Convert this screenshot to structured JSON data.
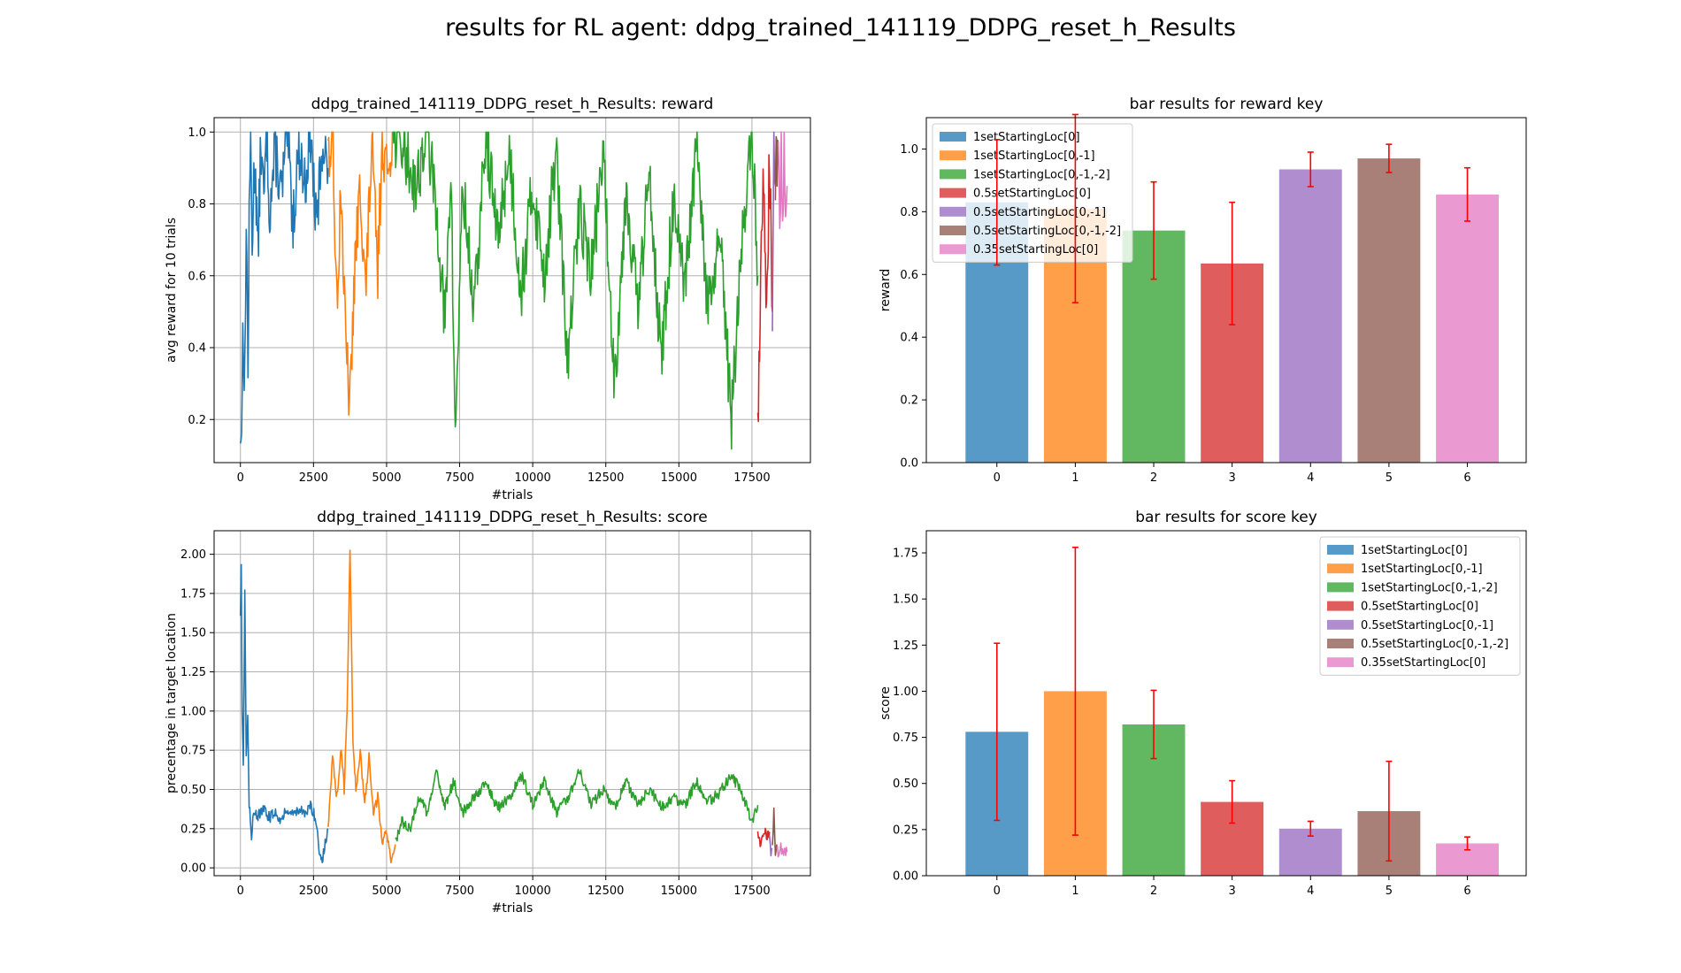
{
  "figure_title": "results for RL agent: ddpg_trained_141119_DDPG_reset_h_Results",
  "colors": {
    "series": [
      "#1f77b4",
      "#ff7f0e",
      "#2ca02c",
      "#d62728",
      "#9467bd",
      "#8c564b",
      "#e377c2"
    ],
    "error_bar": "#ff0000",
    "grid": "#b0b0b0"
  },
  "chart_data": [
    {
      "type": "line",
      "title": "ddpg_trained_141119_DDPG_reset_h_Results: reward",
      "xlabel": "#trials",
      "ylabel": "avg reward for 10 trials",
      "xlim": [
        -900,
        19500
      ],
      "ylim": [
        0.08,
        1.04
      ],
      "xticks": [
        0,
        2500,
        5000,
        7500,
        10000,
        12500,
        15000,
        17500
      ],
      "xtick_labels": [
        "0",
        "2500",
        "5000",
        "7500",
        "10000",
        "12500",
        "15000",
        "17500"
      ],
      "yticks": [
        0.2,
        0.4,
        0.6,
        0.8,
        1.0
      ],
      "ytick_labels": [
        "0.2",
        "0.4",
        "0.6",
        "0.8",
        "1.0"
      ],
      "grid": true,
      "series": [
        {
          "range": [
            0,
            3000
          ],
          "points": [
            [
              0,
              0.18
            ],
            [
              40,
              0.12
            ],
            [
              80,
              0.55
            ],
            [
              130,
              0.2
            ],
            [
              200,
              0.76
            ],
            [
              260,
              0.35
            ],
            [
              300,
              0.72
            ],
            [
              350,
              1.0
            ],
            [
              400,
              0.7
            ],
            [
              500,
              0.95
            ],
            [
              600,
              0.65
            ],
            [
              700,
              0.98
            ],
            [
              800,
              0.8
            ],
            [
              900,
              1.0
            ],
            [
              1000,
              0.78
            ],
            [
              1200,
              0.95
            ],
            [
              1400,
              0.82
            ],
            [
              1600,
              1.0
            ],
            [
              1800,
              0.75
            ],
            [
              2000,
              0.97
            ],
            [
              2200,
              0.85
            ],
            [
              2400,
              1.0
            ],
            [
              2600,
              0.72
            ],
            [
              2800,
              0.98
            ],
            [
              3000,
              0.9
            ]
          ]
        },
        {
          "range": [
            3000,
            5200
          ],
          "points": [
            [
              3000,
              0.9
            ],
            [
              3150,
              1.0
            ],
            [
              3300,
              0.55
            ],
            [
              3450,
              0.85
            ],
            [
              3600,
              0.4
            ],
            [
              3750,
              0.24
            ],
            [
              3900,
              0.6
            ],
            [
              4100,
              0.85
            ],
            [
              4300,
              0.55
            ],
            [
              4400,
              0.8
            ],
            [
              4500,
              0.95
            ],
            [
              4700,
              0.6
            ],
            [
              4850,
              1.0
            ],
            [
              5000,
              0.88
            ],
            [
              5200,
              1.0
            ]
          ]
        },
        {
          "range": [
            5200,
            17700
          ],
          "points": [
            [
              5200,
              1.0
            ],
            [
              5600,
              0.95
            ],
            [
              6000,
              0.85
            ],
            [
              6400,
              1.0
            ],
            [
              6800,
              0.7
            ],
            [
              7000,
              0.45
            ],
            [
              7200,
              0.9
            ],
            [
              7350,
              0.15
            ],
            [
              7600,
              0.85
            ],
            [
              8000,
              0.5
            ],
            [
              8400,
              1.0
            ],
            [
              8800,
              0.7
            ],
            [
              9200,
              0.95
            ],
            [
              9600,
              0.55
            ],
            [
              10000,
              0.85
            ],
            [
              10400,
              0.6
            ],
            [
              10800,
              0.95
            ],
            [
              11200,
              0.35
            ],
            [
              11600,
              0.8
            ],
            [
              12000,
              0.6
            ],
            [
              12400,
              0.95
            ],
            [
              12800,
              0.3
            ],
            [
              13200,
              0.85
            ],
            [
              13600,
              0.5
            ],
            [
              14000,
              0.9
            ],
            [
              14400,
              0.35
            ],
            [
              14800,
              0.8
            ],
            [
              15200,
              0.55
            ],
            [
              15600,
              0.95
            ],
            [
              16000,
              0.5
            ],
            [
              16400,
              0.7
            ],
            [
              16800,
              0.2
            ],
            [
              17200,
              0.75
            ],
            [
              17500,
              1.0
            ],
            [
              17700,
              0.6
            ]
          ]
        },
        {
          "range": [
            17700,
            18200
          ],
          "points": [
            [
              17700,
              0.2
            ],
            [
              17800,
              0.6
            ],
            [
              17900,
              0.9
            ],
            [
              18000,
              0.45
            ],
            [
              18100,
              0.95
            ],
            [
              18200,
              0.5
            ]
          ]
        },
        {
          "range": [
            18200,
            18300
          ],
          "points": [
            [
              18200,
              0.5
            ],
            [
              18250,
              1.0
            ],
            [
              18300,
              0.85
            ]
          ]
        },
        {
          "range": [
            18300,
            18400
          ],
          "points": [
            [
              18300,
              0.85
            ],
            [
              18330,
              0.95
            ],
            [
              18360,
              0.9
            ],
            [
              18400,
              0.96
            ]
          ]
        },
        {
          "range": [
            18400,
            18700
          ],
          "points": [
            [
              18400,
              0.96
            ],
            [
              18450,
              0.72
            ],
            [
              18500,
              0.93
            ],
            [
              18550,
              0.8
            ],
            [
              18600,
              0.92
            ],
            [
              18650,
              0.7
            ],
            [
              18700,
              0.85
            ]
          ]
        }
      ]
    },
    {
      "type": "bar",
      "title": "bar results for reward key",
      "xlabel": "",
      "ylabel": "reward",
      "categories": [
        "0",
        "1",
        "2",
        "3",
        "4",
        "5",
        "6"
      ],
      "values": [
        0.83,
        0.81,
        0.74,
        0.635,
        0.935,
        0.97,
        0.855
      ],
      "errors": [
        0.2,
        0.3,
        0.155,
        0.195,
        0.055,
        0.045,
        0.085
      ],
      "legend": [
        "1setStartingLoc[0]",
        "1setStartingLoc[0,-1]",
        "1setStartingLoc[0,-1,-2]",
        "0.5setStartingLoc[0]",
        "0.5setStartingLoc[0,-1]",
        "0.5setStartingLoc[0,-1,-2]",
        "0.35setStartingLoc[0]"
      ],
      "legend_position": "upper left",
      "ylim": [
        0,
        1.1
      ],
      "yticks": [
        0.0,
        0.2,
        0.4,
        0.6,
        0.8,
        1.0
      ],
      "ytick_labels": [
        "0.0",
        "0.2",
        "0.4",
        "0.6",
        "0.8",
        "1.0"
      ],
      "grid": false
    },
    {
      "type": "line",
      "title": "ddpg_trained_141119_DDPG_reset_h_Results: score",
      "xlabel": "#trials",
      "ylabel": "precentage in target location",
      "xlim": [
        -900,
        19500
      ],
      "ylim": [
        -0.05,
        2.15
      ],
      "xticks": [
        0,
        2500,
        5000,
        7500,
        10000,
        12500,
        15000,
        17500
      ],
      "xtick_labels": [
        "0",
        "2500",
        "5000",
        "7500",
        "10000",
        "12500",
        "15000",
        "17500"
      ],
      "yticks": [
        0.0,
        0.25,
        0.5,
        0.75,
        1.0,
        1.25,
        1.5,
        1.75,
        2.0
      ],
      "ytick_labels": [
        "0.00",
        "0.25",
        "0.50",
        "0.75",
        "1.00",
        "1.25",
        "1.50",
        "1.75",
        "2.00"
      ],
      "grid": true,
      "series": [
        {
          "range": [
            0,
            3000
          ],
          "points": [
            [
              0,
              1.62
            ],
            [
              30,
              1.93
            ],
            [
              60,
              1.0
            ],
            [
              100,
              0.65
            ],
            [
              150,
              1.75
            ],
            [
              200,
              0.7
            ],
            [
              250,
              0.95
            ],
            [
              300,
              0.4
            ],
            [
              380,
              0.2
            ],
            [
              450,
              0.38
            ],
            [
              600,
              0.33
            ],
            [
              800,
              0.37
            ],
            [
              1000,
              0.32
            ],
            [
              1200,
              0.36
            ],
            [
              1400,
              0.3
            ],
            [
              1600,
              0.38
            ],
            [
              1800,
              0.34
            ],
            [
              2000,
              0.38
            ],
            [
              2200,
              0.33
            ],
            [
              2400,
              0.4
            ],
            [
              2600,
              0.3
            ],
            [
              2700,
              0.1
            ],
            [
              2800,
              0.05
            ],
            [
              2900,
              0.15
            ],
            [
              3000,
              0.25
            ]
          ]
        },
        {
          "range": [
            3000,
            5300
          ],
          "points": [
            [
              3000,
              0.25
            ],
            [
              3150,
              0.7
            ],
            [
              3300,
              0.45
            ],
            [
              3450,
              0.75
            ],
            [
              3550,
              0.5
            ],
            [
              3650,
              1.0
            ],
            [
              3750,
              2.05
            ],
            [
              3850,
              0.8
            ],
            [
              3950,
              0.5
            ],
            [
              4100,
              0.75
            ],
            [
              4250,
              0.4
            ],
            [
              4400,
              0.7
            ],
            [
              4550,
              0.35
            ],
            [
              4700,
              0.45
            ],
            [
              4850,
              0.15
            ],
            [
              5000,
              0.25
            ],
            [
              5150,
              0.05
            ],
            [
              5300,
              0.15
            ]
          ]
        },
        {
          "range": [
            5300,
            17700
          ],
          "points": [
            [
              5300,
              0.15
            ],
            [
              5500,
              0.3
            ],
            [
              5800,
              0.25
            ],
            [
              6100,
              0.45
            ],
            [
              6400,
              0.35
            ],
            [
              6700,
              0.6
            ],
            [
              7000,
              0.4
            ],
            [
              7300,
              0.55
            ],
            [
              7600,
              0.35
            ],
            [
              8000,
              0.45
            ],
            [
              8400,
              0.55
            ],
            [
              8800,
              0.38
            ],
            [
              9200,
              0.45
            ],
            [
              9600,
              0.6
            ],
            [
              10000,
              0.4
            ],
            [
              10400,
              0.55
            ],
            [
              10800,
              0.35
            ],
            [
              11200,
              0.45
            ],
            [
              11600,
              0.62
            ],
            [
              12000,
              0.4
            ],
            [
              12400,
              0.5
            ],
            [
              12800,
              0.38
            ],
            [
              13200,
              0.55
            ],
            [
              13600,
              0.4
            ],
            [
              14000,
              0.5
            ],
            [
              14400,
              0.38
            ],
            [
              14800,
              0.45
            ],
            [
              15200,
              0.4
            ],
            [
              15600,
              0.55
            ],
            [
              16000,
              0.42
            ],
            [
              16400,
              0.48
            ],
            [
              16800,
              0.6
            ],
            [
              17200,
              0.45
            ],
            [
              17500,
              0.3
            ],
            [
              17700,
              0.4
            ]
          ]
        },
        {
          "range": [
            17700,
            18100
          ],
          "points": [
            [
              17700,
              0.2
            ],
            [
              17800,
              0.15
            ],
            [
              17900,
              0.25
            ],
            [
              18000,
              0.2
            ],
            [
              18100,
              0.23
            ]
          ]
        },
        {
          "range": [
            18100,
            18200
          ],
          "points": [
            [
              18100,
              0.23
            ],
            [
              18150,
              0.07
            ],
            [
              18200,
              0.12
            ]
          ]
        },
        {
          "range": [
            18200,
            18350
          ],
          "points": [
            [
              18200,
              0.12
            ],
            [
              18250,
              0.35
            ],
            [
              18300,
              0.1
            ],
            [
              18350,
              0.15
            ]
          ]
        },
        {
          "range": [
            18350,
            18700
          ],
          "points": [
            [
              18350,
              0.15
            ],
            [
              18420,
              0.08
            ],
            [
              18490,
              0.13
            ],
            [
              18560,
              0.09
            ],
            [
              18630,
              0.12
            ],
            [
              18700,
              0.1
            ]
          ]
        }
      ]
    },
    {
      "type": "bar",
      "title": "bar results for score key",
      "xlabel": "",
      "ylabel": "score",
      "categories": [
        "0",
        "1",
        "2",
        "3",
        "4",
        "5",
        "6"
      ],
      "values": [
        0.78,
        1.0,
        0.82,
        0.4,
        0.255,
        0.35,
        0.175
      ],
      "errors": [
        0.48,
        0.78,
        0.185,
        0.115,
        0.04,
        0.27,
        0.035
      ],
      "legend": [
        "1setStartingLoc[0]",
        "1setStartingLoc[0,-1]",
        "1setStartingLoc[0,-1,-2]",
        "0.5setStartingLoc[0]",
        "0.5setStartingLoc[0,-1]",
        "0.5setStartingLoc[0,-1,-2]",
        "0.35setStartingLoc[0]"
      ],
      "legend_position": "upper right",
      "ylim": [
        0,
        1.87
      ],
      "yticks": [
        0.0,
        0.25,
        0.5,
        0.75,
        1.0,
        1.25,
        1.5,
        1.75
      ],
      "ytick_labels": [
        "0.00",
        "0.25",
        "0.50",
        "0.75",
        "1.00",
        "1.25",
        "1.50",
        "1.75"
      ],
      "grid": false
    }
  ]
}
